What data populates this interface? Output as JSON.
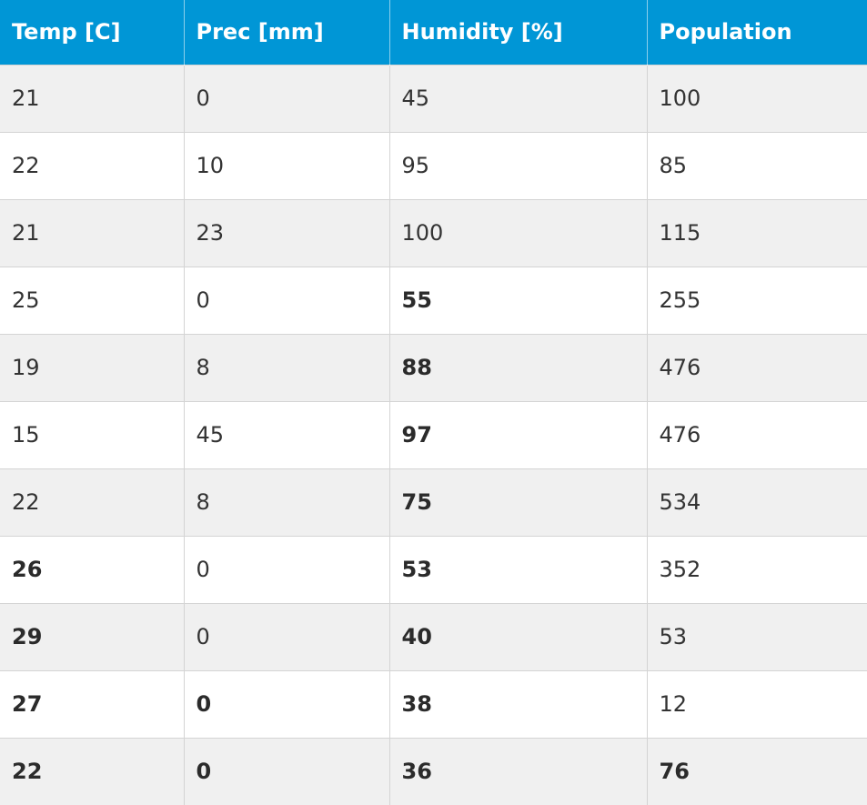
{
  "table": {
    "header_bg": "#0096d6",
    "headers": [
      "Temp [C]",
      "Prec [mm]",
      "Humidity [%]",
      "Population"
    ],
    "rows": [
      {
        "cells": [
          "21",
          "0",
          "45",
          "100"
        ],
        "bold": [
          false,
          false,
          false,
          false
        ]
      },
      {
        "cells": [
          "22",
          "10",
          "95",
          "85"
        ],
        "bold": [
          false,
          false,
          false,
          false
        ]
      },
      {
        "cells": [
          "21",
          "23",
          "100",
          "115"
        ],
        "bold": [
          false,
          false,
          false,
          false
        ]
      },
      {
        "cells": [
          "25",
          "0",
          "55",
          "255"
        ],
        "bold": [
          false,
          false,
          true,
          false
        ]
      },
      {
        "cells": [
          "19",
          "8",
          "88",
          "476"
        ],
        "bold": [
          false,
          false,
          true,
          false
        ]
      },
      {
        "cells": [
          "15",
          "45",
          "97",
          "476"
        ],
        "bold": [
          false,
          false,
          true,
          false
        ]
      },
      {
        "cells": [
          "22",
          "8",
          "75",
          "534"
        ],
        "bold": [
          false,
          false,
          true,
          false
        ]
      },
      {
        "cells": [
          "26",
          "0",
          "53",
          "352"
        ],
        "bold": [
          true,
          false,
          true,
          false
        ]
      },
      {
        "cells": [
          "29",
          "0",
          "40",
          "53"
        ],
        "bold": [
          true,
          false,
          true,
          false
        ]
      },
      {
        "cells": [
          "27",
          "0",
          "38",
          "12"
        ],
        "bold": [
          true,
          true,
          true,
          false
        ]
      },
      {
        "cells": [
          "22",
          "0",
          "36",
          "76"
        ],
        "bold": [
          true,
          true,
          true,
          true
        ]
      }
    ]
  }
}
